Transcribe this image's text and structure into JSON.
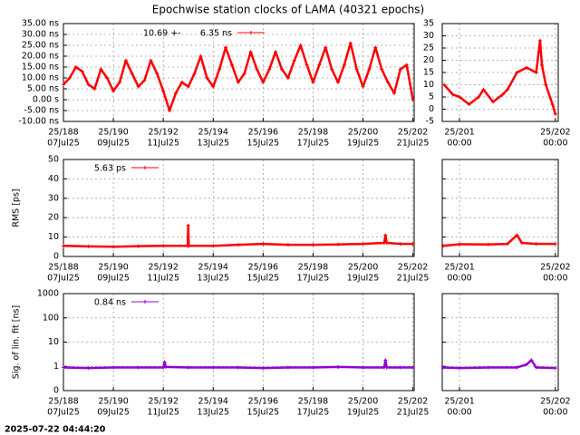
{
  "title": "Epochwise station clocks of LAMA (40321 epochs)",
  "footer": "2025-07-22 04:44:20",
  "chart_data": [
    {
      "type": "line",
      "legend_prefix": "10.69 +-",
      "xlim": [
        188,
        202.05
      ],
      "ylim": [
        -10,
        35
      ],
      "xticks": [
        {
          "value": 188,
          "label": "25/188",
          "sublabel": "07Jul25"
        },
        {
          "value": 190,
          "label": "25/190",
          "sublabel": "09Jul25"
        },
        {
          "value": 192,
          "label": "25/192",
          "sublabel": "11Jul25"
        },
        {
          "value": 194,
          "label": "25/194",
          "sublabel": "13Jul25"
        },
        {
          "value": 196,
          "label": "25/196",
          "sublabel": "15Jul25"
        },
        {
          "value": 198,
          "label": "25/198",
          "sublabel": "17Jul25"
        },
        {
          "value": 200,
          "label": "25/200",
          "sublabel": "19Jul25"
        },
        {
          "value": 202,
          "label": "25/202",
          "sublabel": "21Jul25"
        }
      ],
      "yticks": [
        {
          "value": 35,
          "label": "35.00 ns"
        },
        {
          "value": 30,
          "label": "30.00 ns"
        },
        {
          "value": 25,
          "label": "25.00 ns"
        },
        {
          "value": 20,
          "label": "20.00 ns"
        },
        {
          "value": 15,
          "label": "15.00 ns"
        },
        {
          "value": 10,
          "label": "10.00 ns"
        },
        {
          "value": 5,
          "label": "5.00 ns"
        },
        {
          "value": 0,
          "label": "0.00  s"
        },
        {
          "value": -5,
          "label": "-5.00 ns"
        },
        {
          "value": -10,
          "label": "-10.00 ns"
        }
      ],
      "grid": true,
      "series": [
        {
          "name": "6.35 ns",
          "color": "#ff0000",
          "x": [
            188,
            188.25,
            188.5,
            188.75,
            189,
            189.25,
            189.5,
            189.75,
            190,
            190.25,
            190.5,
            190.75,
            191,
            191.25,
            191.5,
            191.75,
            192,
            192.25,
            192.5,
            192.75,
            193,
            193.25,
            193.5,
            193.75,
            194,
            194.25,
            194.5,
            194.75,
            195,
            195.25,
            195.5,
            195.75,
            196,
            196.25,
            196.5,
            196.75,
            197,
            197.25,
            197.5,
            197.75,
            198,
            198.25,
            198.5,
            198.75,
            199,
            199.25,
            199.5,
            199.75,
            200,
            200.25,
            200.5,
            200.75,
            201,
            201.25,
            201.5,
            201.75,
            202
          ],
          "values": [
            7,
            10,
            15,
            13,
            7,
            5,
            14,
            10,
            4,
            8,
            18,
            12,
            6,
            9,
            18,
            12,
            4,
            -5,
            3,
            8,
            6,
            12,
            20,
            10,
            6,
            14,
            24,
            16,
            8,
            12,
            22,
            14,
            8,
            14,
            22,
            14,
            10,
            18,
            25,
            16,
            8,
            16,
            24,
            14,
            8,
            16,
            26,
            14,
            6,
            14,
            24,
            14,
            8,
            3,
            14,
            16,
            0
          ]
        }
      ]
    },
    {
      "type": "line",
      "xlim": [
        200.82,
        202.03
      ],
      "ylim": [
        -5,
        35
      ],
      "xticks": [
        {
          "value": 201,
          "label": "25/201",
          "sublabel": "00:00"
        },
        {
          "value": 202,
          "label": "25/202",
          "sublabel": "00:00"
        }
      ],
      "yticks": [
        35,
        30,
        25,
        20,
        15,
        10,
        5,
        0,
        -5
      ],
      "grid": true,
      "series": [
        {
          "color": "#ff0000",
          "x": [
            200.84,
            200.93,
            201,
            201.1,
            201.2,
            201.25,
            201.35,
            201.45,
            201.5,
            201.6,
            201.7,
            201.8,
            201.84,
            201.86,
            201.9,
            201.97,
            202
          ],
          "values": [
            10,
            6,
            5,
            2,
            5,
            8,
            3,
            6,
            8,
            15,
            17,
            15,
            28,
            18,
            10,
            2,
            -2
          ]
        }
      ]
    },
    {
      "type": "line",
      "ylabel": "RMS [ps]",
      "xlim": [
        188,
        202.05
      ],
      "ylim": [
        0,
        50
      ],
      "xticks": [
        {
          "value": 188,
          "label": "25/188",
          "sublabel": "07Jul25"
        },
        {
          "value": 190,
          "label": "25/190",
          "sublabel": "09Jul25"
        },
        {
          "value": 192,
          "label": "25/192",
          "sublabel": "11Jul25"
        },
        {
          "value": 194,
          "label": "25/194",
          "sublabel": "13Jul25"
        },
        {
          "value": 196,
          "label": "25/196",
          "sublabel": "15Jul25"
        },
        {
          "value": 198,
          "label": "25/198",
          "sublabel": "17Jul25"
        },
        {
          "value": 200,
          "label": "25/200",
          "sublabel": "19Jul25"
        },
        {
          "value": 202,
          "label": "25/202",
          "sublabel": "21Jul25"
        }
      ],
      "yticks": [
        50,
        40,
        30,
        20,
        10,
        0
      ],
      "grid": true,
      "series": [
        {
          "name": "5.63 ps",
          "color": "#ff0000",
          "x": [
            188,
            189,
            190,
            191,
            192,
            192.98,
            193,
            193.02,
            194,
            195,
            196,
            197,
            198,
            199,
            200,
            200.85,
            200.9,
            200.95,
            201.5,
            202
          ],
          "values": [
            5.5,
            5.2,
            5,
            5.3,
            5.5,
            5.5,
            16,
            5.5,
            5.5,
            6,
            6.5,
            6,
            6,
            6.2,
            6.5,
            7,
            11,
            7,
            6.5,
            6.5
          ]
        }
      ]
    },
    {
      "type": "line",
      "xlim": [
        200.82,
        202.03
      ],
      "ylim": [
        0,
        50
      ],
      "xticks": [
        {
          "value": 201,
          "label": "25/201",
          "sublabel": "00:00"
        },
        {
          "value": 202,
          "label": "25/202",
          "sublabel": "00:00"
        }
      ],
      "yticks": [
        50,
        40,
        30,
        20,
        10,
        0
      ],
      "grid": true,
      "series": [
        {
          "color": "#ff0000",
          "x": [
            200.83,
            201,
            201.3,
            201.5,
            201.6,
            201.65,
            201.8,
            202
          ],
          "values": [
            5.5,
            6.3,
            6.2,
            6.5,
            11,
            7,
            6.5,
            6.5
          ]
        }
      ]
    },
    {
      "type": "line",
      "ylabel": "Sig. of lin. fit [ns]",
      "log": true,
      "xlim": [
        188,
        202.05
      ],
      "ylim": [
        0.1,
        1000
      ],
      "xticks": [
        {
          "value": 188,
          "label": "25/188",
          "sublabel": "07Jul25"
        },
        {
          "value": 190,
          "label": "25/190",
          "sublabel": "09Jul25"
        },
        {
          "value": 192,
          "label": "25/192",
          "sublabel": "11Jul25"
        },
        {
          "value": 194,
          "label": "25/194",
          "sublabel": "13Jul25"
        },
        {
          "value": 196,
          "label": "25/196",
          "sublabel": "15Jul25"
        },
        {
          "value": 198,
          "label": "25/198",
          "sublabel": "17Jul25"
        },
        {
          "value": 200,
          "label": "25/200",
          "sublabel": "19Jul25"
        },
        {
          "value": 202,
          "label": "25/202",
          "sublabel": "21Jul25"
        }
      ],
      "yticks": [
        1000,
        100,
        10,
        1,
        {
          "value": 0.1,
          "label": "0"
        }
      ],
      "grid": true,
      "series": [
        {
          "name": "0.84 ns",
          "color": "#9400d3",
          "x": [
            188,
            189,
            190,
            191,
            192,
            192.05,
            192.1,
            193,
            194,
            195,
            196,
            197,
            198,
            199,
            200,
            200.85,
            200.9,
            200.95,
            201.5,
            202
          ],
          "values": [
            0.9,
            0.85,
            0.9,
            0.9,
            0.9,
            1.5,
            0.95,
            0.9,
            0.9,
            0.9,
            0.85,
            0.9,
            0.9,
            0.95,
            0.9,
            0.9,
            1.8,
            0.9,
            0.9,
            0.9
          ]
        }
      ]
    },
    {
      "type": "line",
      "log": true,
      "xlim": [
        200.82,
        202.03
      ],
      "ylim": [
        0.1,
        1000
      ],
      "xticks": [
        {
          "value": 201,
          "label": "25/201",
          "sublabel": "00:00"
        },
        {
          "value": 202,
          "label": "25/202",
          "sublabel": "00:00"
        }
      ],
      "yticks": [
        1000,
        100,
        10,
        1,
        0.1
      ],
      "grid": true,
      "series": [
        {
          "color": "#9400d3",
          "x": [
            200.83,
            201,
            201.3,
            201.6,
            201.7,
            201.75,
            201.8,
            202
          ],
          "values": [
            0.9,
            0.85,
            0.9,
            0.9,
            1.2,
            1.8,
            0.9,
            0.85
          ]
        }
      ]
    }
  ]
}
